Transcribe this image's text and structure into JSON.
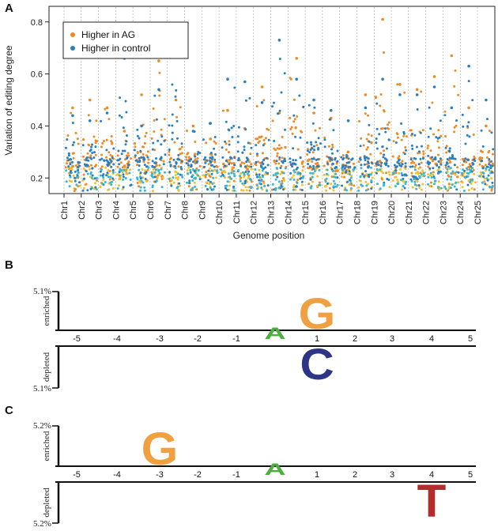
{
  "chart_data": [
    {
      "panel": "A",
      "type": "scatter",
      "title": "",
      "xlabel": "Genome position",
      "ylabel": "Variation of  editing degree",
      "ylim": [
        0.14,
        0.86
      ],
      "yticks": [
        0.2,
        0.4,
        0.6,
        0.8
      ],
      "categories": [
        "Chr1",
        "Chr2",
        "Chr3",
        "Chr4",
        "Chr5",
        "Chr6",
        "Chr7",
        "Chr8",
        "Chr9",
        "Chr10",
        "Chr11",
        "Chr12",
        "Chr13",
        "Chr14",
        "Chr15",
        "Chr16",
        "Chr17",
        "Chr18",
        "Chr19",
        "Chr20",
        "Chr21",
        "Chr22",
        "Chr23",
        "Chr24",
        "Chr25"
      ],
      "legend": [
        {
          "name": "Higher in AG",
          "color": "#f08a24"
        },
        {
          "name": "Higher in control",
          "color": "#2a7fc0"
        }
      ],
      "legend_position": "top-left",
      "grid": "vertical dashed separators",
      "series": [
        {
          "name": "Higher in AG",
          "color": "#f08a24",
          "secondary_color": "#f2c12e",
          "max_values": [
            0.47,
            0.5,
            0.47,
            0.38,
            0.52,
            0.65,
            0.5,
            0.4,
            0.35,
            0.46,
            0.39,
            0.55,
            0.45,
            0.66,
            0.45,
            0.43,
            0.3,
            0.52,
            0.81,
            0.56,
            0.54,
            0.59,
            0.67,
            0.47,
            0.4
          ]
        },
        {
          "name": "Higher in control",
          "color": "#2a7fc0",
          "secondary_color": "#33b8d6",
          "max_values": [
            0.44,
            0.42,
            0.45,
            0.66,
            0.4,
            0.54,
            0.67,
            0.38,
            0.41,
            0.58,
            0.57,
            0.49,
            0.73,
            0.58,
            0.5,
            0.46,
            0.42,
            0.47,
            0.58,
            0.52,
            0.52,
            0.55,
            0.47,
            0.63,
            0.5
          ]
        }
      ]
    },
    {
      "panel": "B",
      "type": "sequence-logo",
      "ymax_label": "5.1%",
      "ymin_label": "5.1%",
      "enriched_label": "enriched",
      "depleted_label": "depleted",
      "positions": [
        "-5",
        "-4",
        "-3",
        "-2",
        "-1",
        "A",
        "1",
        "2",
        "3",
        "4",
        "5"
      ],
      "center_base": "A",
      "enriched": [
        {
          "position": "1",
          "letter": "G",
          "color": "#f0a040"
        }
      ],
      "depleted": [
        {
          "position": "1",
          "letter": "C",
          "color": "#2e3587"
        }
      ]
    },
    {
      "panel": "C",
      "type": "sequence-logo",
      "ymax_label": "5.2%",
      "ymin_label": "5.2%",
      "enriched_label": "enriched",
      "depleted_label": "depleted",
      "positions": [
        "-5",
        "-4",
        "-3",
        "-2",
        "-1",
        "A",
        "1",
        "2",
        "3",
        "4",
        "5"
      ],
      "center_base": "A",
      "enriched": [
        {
          "position": "-3",
          "letter": "G",
          "color": "#f0a040"
        }
      ],
      "depleted": [
        {
          "position": "4",
          "letter": "T",
          "color": "#b32d2d"
        }
      ]
    }
  ],
  "colors": {
    "center_base": "#4caf3f",
    "axis": "#111111",
    "separator": "#b0b0b0"
  }
}
